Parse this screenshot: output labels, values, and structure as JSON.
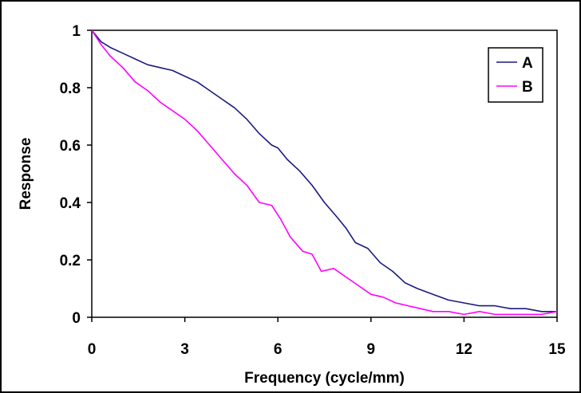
{
  "chart_data": {
    "type": "line",
    "title": "",
    "xlabel": "Frequency (cycle/mm)",
    "ylabel": "Response",
    "xlim": [
      0,
      15
    ],
    "ylim": [
      0,
      1
    ],
    "x_ticks": [
      0,
      3,
      6,
      9,
      12,
      15
    ],
    "y_ticks": [
      0,
      0.2,
      0.4,
      0.6,
      0.8,
      1
    ],
    "x_tick_labels": [
      "0",
      "3",
      "6",
      "9",
      "12",
      "15"
    ],
    "y_tick_labels": [
      "0",
      "0.2",
      "0.4",
      "0.6",
      "0.8",
      "1"
    ],
    "grid": false,
    "legend_position": "top-right",
    "series": [
      {
        "name": "A",
        "color": "#1a1a80",
        "x": [
          0,
          0.3,
          0.6,
          1.0,
          1.4,
          1.8,
          2.2,
          2.6,
          3.0,
          3.4,
          3.8,
          4.2,
          4.6,
          5.0,
          5.4,
          5.8,
          6.0,
          6.3,
          6.7,
          7.1,
          7.5,
          7.9,
          8.2,
          8.5,
          8.9,
          9.3,
          9.7,
          10.1,
          10.5,
          11.0,
          11.5,
          12.0,
          12.5,
          13.0,
          13.5,
          14.0,
          14.5,
          15.0
        ],
        "y": [
          1.0,
          0.96,
          0.94,
          0.92,
          0.9,
          0.88,
          0.87,
          0.86,
          0.84,
          0.82,
          0.79,
          0.76,
          0.73,
          0.69,
          0.64,
          0.6,
          0.59,
          0.55,
          0.51,
          0.46,
          0.4,
          0.35,
          0.31,
          0.26,
          0.24,
          0.19,
          0.16,
          0.12,
          0.1,
          0.08,
          0.06,
          0.05,
          0.04,
          0.04,
          0.03,
          0.03,
          0.02,
          0.02
        ]
      },
      {
        "name": "B",
        "color": "#ff00ff",
        "x": [
          0,
          0.3,
          0.6,
          1.0,
          1.4,
          1.8,
          2.2,
          2.6,
          3.0,
          3.4,
          3.8,
          4.2,
          4.6,
          5.0,
          5.4,
          5.8,
          6.1,
          6.4,
          6.8,
          7.1,
          7.4,
          7.8,
          8.2,
          8.6,
          9.0,
          9.4,
          9.8,
          10.2,
          10.6,
          11.0,
          11.5,
          12.0,
          12.5,
          13.0,
          13.5,
          14.0,
          14.5,
          15.0
        ],
        "y": [
          1.0,
          0.95,
          0.91,
          0.87,
          0.82,
          0.79,
          0.75,
          0.72,
          0.69,
          0.65,
          0.6,
          0.55,
          0.5,
          0.46,
          0.4,
          0.39,
          0.34,
          0.28,
          0.23,
          0.22,
          0.16,
          0.17,
          0.14,
          0.11,
          0.08,
          0.07,
          0.05,
          0.04,
          0.03,
          0.02,
          0.02,
          0.01,
          0.02,
          0.01,
          0.01,
          0.01,
          0.01,
          0.02
        ]
      }
    ]
  }
}
